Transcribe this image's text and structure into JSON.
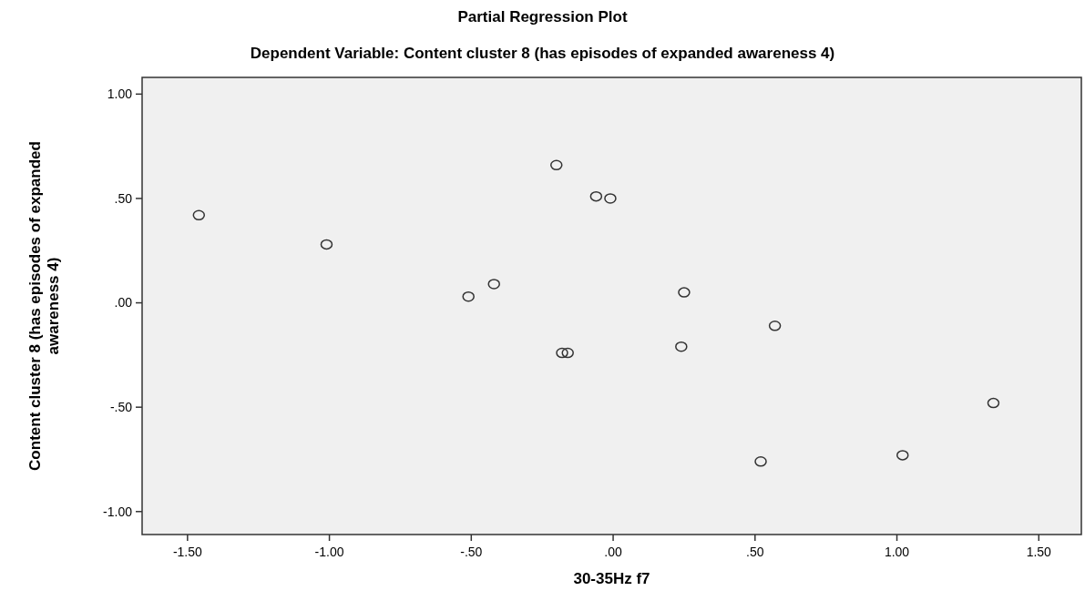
{
  "chart_data": {
    "type": "scatter",
    "title": "Partial Regression Plot",
    "subtitle": "Dependent Variable: Content cluster 8 (has episodes of expanded awareness 4)",
    "xlabel": "30-35Hz f7",
    "ylabel": "Content cluster 8 (has episodes of expanded awareness 4)",
    "x": [
      -1.46,
      -1.01,
      -0.51,
      -0.42,
      -0.2,
      -0.06,
      -0.01,
      -0.18,
      -0.16,
      0.25,
      0.24,
      0.57,
      1.34,
      1.02,
      0.52
    ],
    "values": [
      0.42,
      0.28,
      0.03,
      0.09,
      0.66,
      0.51,
      0.5,
      -0.24,
      -0.24,
      0.05,
      -0.21,
      -0.11,
      -0.48,
      -0.73,
      -0.76
    ],
    "color": "#333333",
    "marker": "circle",
    "grid": false,
    "xlim": [
      -1.66,
      1.65
    ],
    "ylim": [
      -1.11,
      1.08
    ],
    "xticks": [
      {
        "value": -1.5,
        "label": "-1.50"
      },
      {
        "value": -1,
        "label": "-1.00"
      },
      {
        "value": -0.5,
        "label": "-.50"
      },
      {
        "value": 0,
        "label": ".00"
      },
      {
        "value": 0.5,
        "label": ".50"
      },
      {
        "value": 1,
        "label": "1.00"
      },
      {
        "value": 1.5,
        "label": "1.50"
      }
    ],
    "yticks": [
      {
        "value": -1,
        "label": "-1.00"
      },
      {
        "value": -0.5,
        "label": "-.50"
      },
      {
        "value": 0,
        "label": ".00"
      },
      {
        "value": 0.5,
        "label": ".50"
      },
      {
        "value": 1,
        "label": "1.00"
      }
    ]
  }
}
